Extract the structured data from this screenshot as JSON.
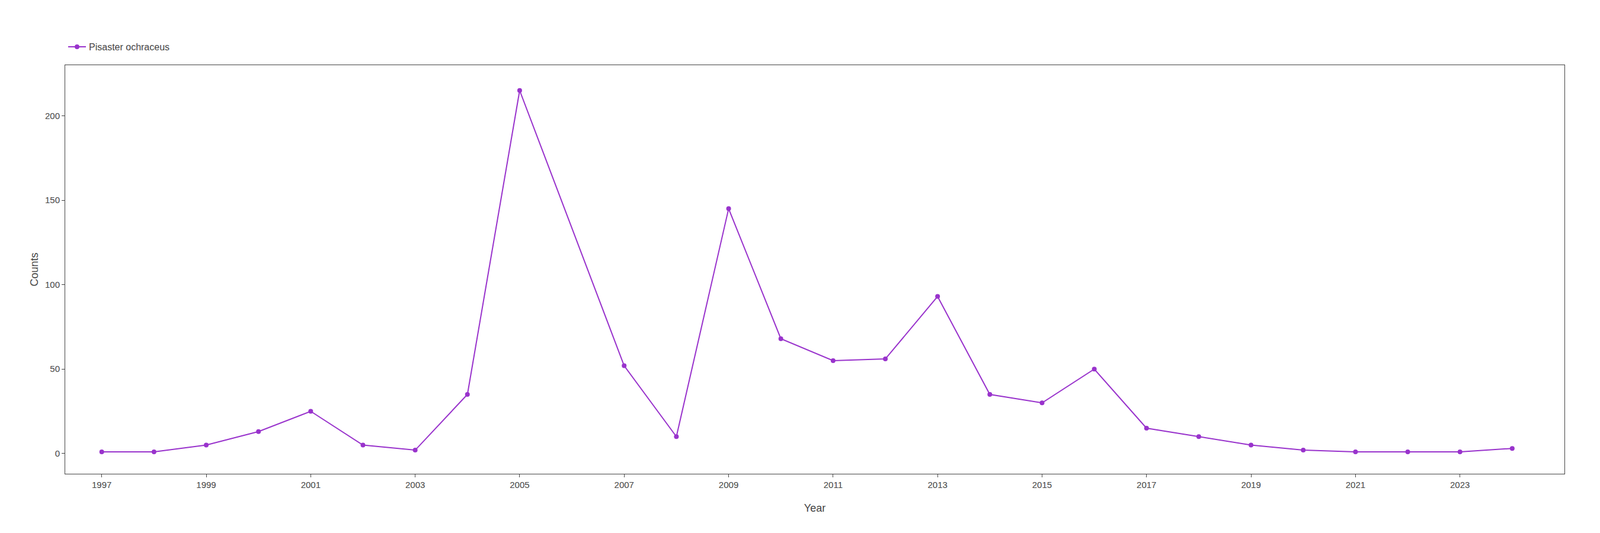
{
  "chart_data": {
    "type": "line",
    "x": [
      1997,
      1998,
      1999,
      2000,
      2001,
      2002,
      2003,
      2004,
      2005,
      2007,
      2008,
      2009,
      2010,
      2011,
      2012,
      2013,
      2014,
      2015,
      2016,
      2017,
      2018,
      2019,
      2020,
      2021,
      2022,
      2023,
      2024
    ],
    "series": [
      {
        "name": "Pisaster ochraceus",
        "color": "#9933CC",
        "marker": "circle",
        "line_style": "solid",
        "values": [
          1,
          1,
          5,
          13,
          25,
          5,
          2,
          35,
          215,
          52,
          10,
          145,
          68,
          55,
          56,
          93,
          35,
          30,
          50,
          15,
          10,
          5,
          2,
          1,
          1,
          1,
          3
        ]
      }
    ],
    "xlabel": "Year",
    "ylabel": "Counts",
    "xlim": [
      1996.3,
      2025.0
    ],
    "xticks": [
      1997,
      1999,
      2001,
      2003,
      2005,
      2007,
      2009,
      2011,
      2013,
      2015,
      2017,
      2019,
      2021,
      2023
    ],
    "ylim": [
      -12,
      230
    ],
    "yticks": [
      0,
      50,
      100,
      150,
      200
    ],
    "grid": false,
    "legend": "top left"
  }
}
